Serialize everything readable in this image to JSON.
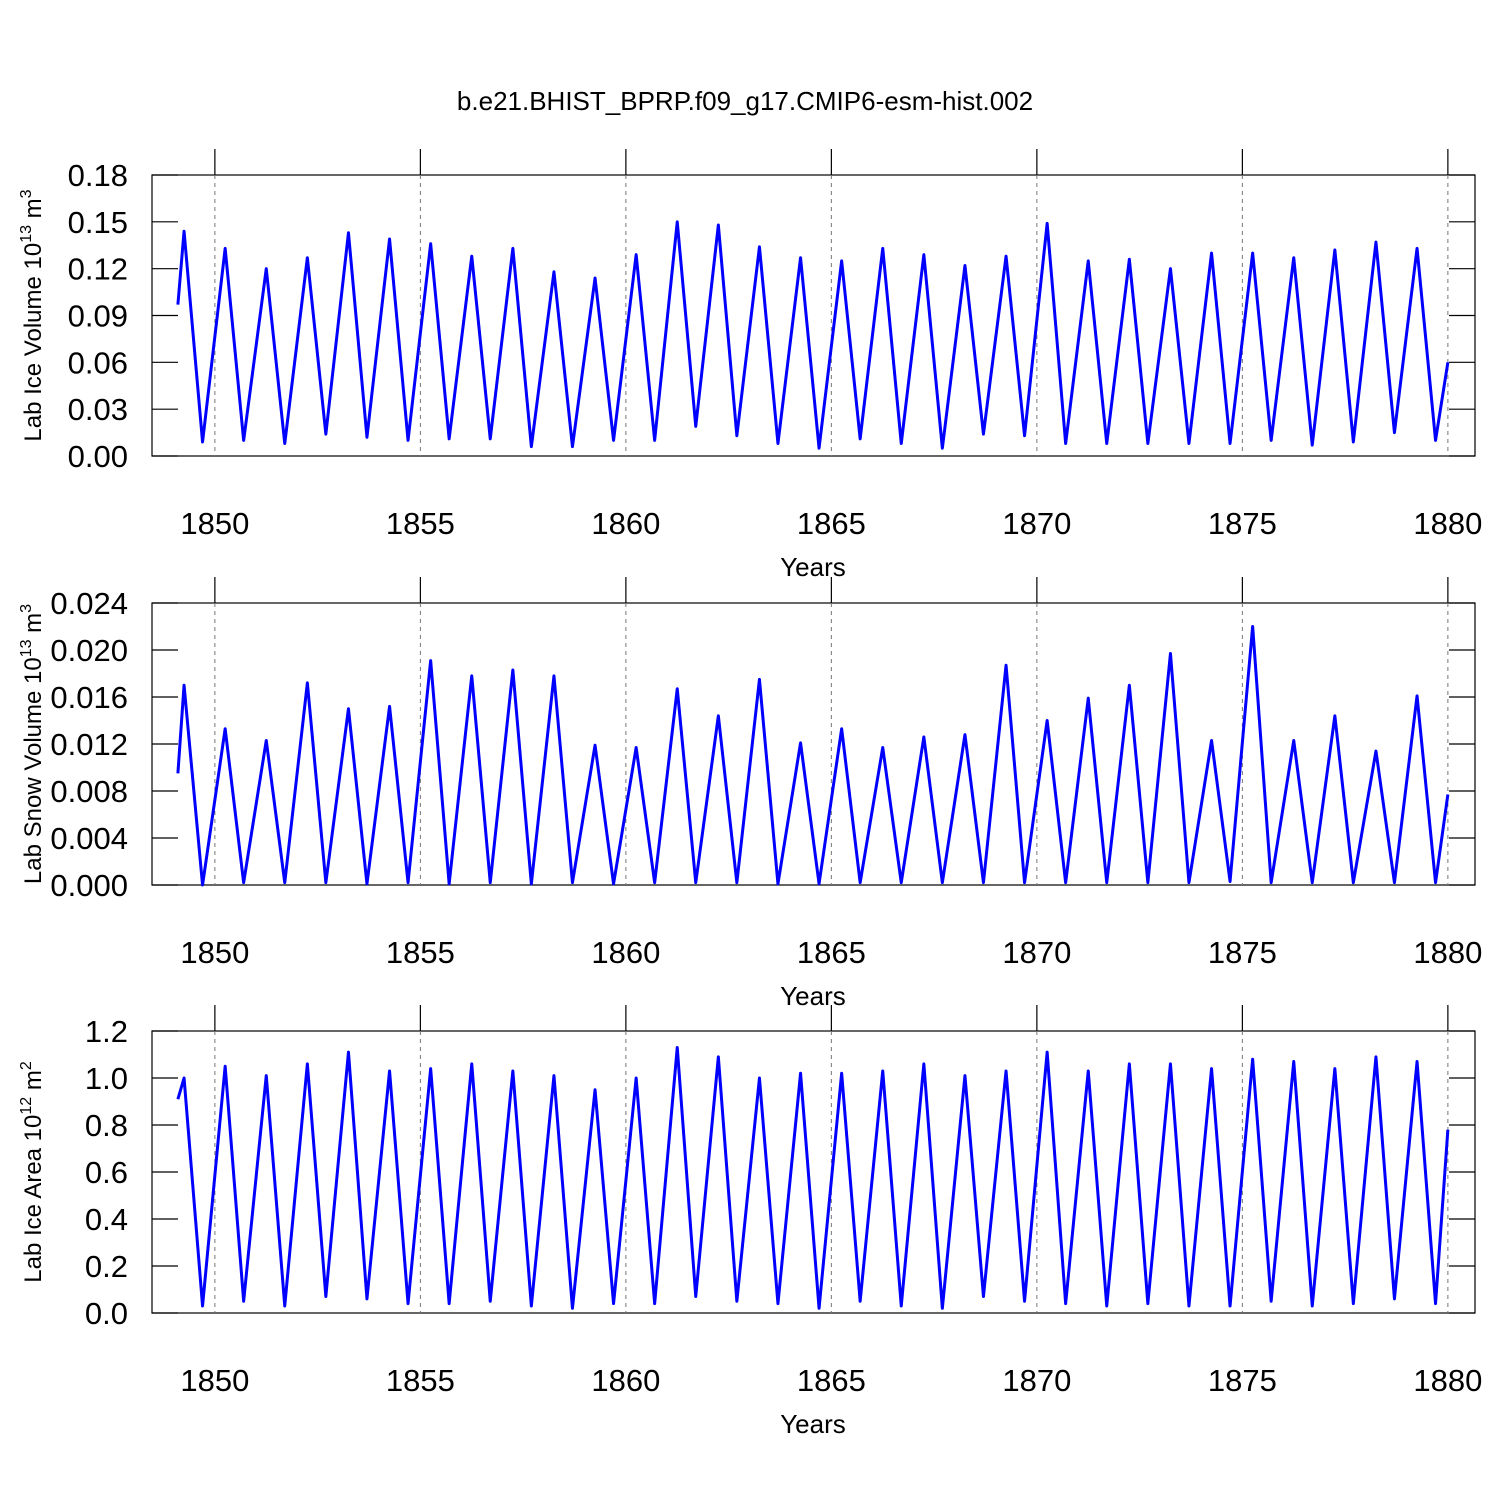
{
  "chart_data": [
    {
      "type": "line",
      "title": "b.e21.BHIST_BPRP.f09_g17.CMIP6-esm-hist.002",
      "xlabel": "Years",
      "ylabel": {
        "text": "Lab Ice Volume 10",
        "exp": "13",
        "unit": " m",
        "unit_exp": "3"
      },
      "xlim": [
        1848.47,
        1880.66
      ],
      "xticks": [
        1850,
        1855,
        1860,
        1865,
        1870,
        1875,
        1880
      ],
      "grid": true,
      "ylim": [
        0,
        0.18
      ],
      "yticks": [
        {
          "value": 0,
          "label": "0.00"
        },
        0.03,
        0.06,
        0.09,
        0.12,
        0.15,
        0.18
      ],
      "color": "#0000ff",
      "x": [
        1849.1,
        1849.25,
        1849.7,
        1850.25,
        1850.7,
        1851.25,
        1851.7,
        1852.25,
        1852.7,
        1853.25,
        1853.7,
        1854.25,
        1854.7,
        1855.25,
        1855.7,
        1856.25,
        1856.7,
        1857.25,
        1857.7,
        1858.25,
        1858.7,
        1859.25,
        1859.7,
        1860.25,
        1860.7,
        1861.25,
        1861.7,
        1862.25,
        1862.7,
        1863.25,
        1863.7,
        1864.25,
        1864.7,
        1865.25,
        1865.7,
        1866.25,
        1866.7,
        1867.25,
        1867.7,
        1868.25,
        1868.7,
        1869.25,
        1869.7,
        1870.25,
        1870.7,
        1871.25,
        1871.7,
        1872.25,
        1872.7,
        1873.25,
        1873.7,
        1874.25,
        1874.7,
        1875.25,
        1875.7,
        1876.25,
        1876.7,
        1877.25,
        1877.7,
        1878.25,
        1878.7,
        1879.25,
        1879.7,
        1880.0
      ],
      "values": [
        0.097,
        0.144,
        0.009,
        0.133,
        0.01,
        0.12,
        0.008,
        0.127,
        0.014,
        0.143,
        0.012,
        0.139,
        0.01,
        0.136,
        0.011,
        0.128,
        0.011,
        0.133,
        0.006,
        0.118,
        0.006,
        0.114,
        0.01,
        0.129,
        0.01,
        0.15,
        0.019,
        0.148,
        0.013,
        0.134,
        0.008,
        0.127,
        0.005,
        0.125,
        0.011,
        0.133,
        0.008,
        0.129,
        0.005,
        0.122,
        0.014,
        0.128,
        0.013,
        0.149,
        0.008,
        0.125,
        0.008,
        0.126,
        0.008,
        0.12,
        0.008,
        0.13,
        0.008,
        0.13,
        0.01,
        0.127,
        0.007,
        0.132,
        0.009,
        0.137,
        0.015,
        0.133,
        0.01,
        0.06
      ]
    },
    {
      "type": "line",
      "xlabel": "Years",
      "ylabel": {
        "text": "Lab Snow Volume 10",
        "exp": "13",
        "unit": " m",
        "unit_exp": "3"
      },
      "xlim": [
        1848.47,
        1880.66
      ],
      "xticks": [
        1850,
        1855,
        1860,
        1865,
        1870,
        1875,
        1880
      ],
      "grid": true,
      "ylim": [
        0,
        0.024
      ],
      "yticks": [
        {
          "value": 0,
          "label": "0.000"
        },
        0.004,
        0.008,
        0.012,
        0.016,
        {
          "value": 0.02,
          "label": "0.020"
        },
        0.024
      ],
      "color": "#0000ff",
      "x": [
        1849.1,
        1849.25,
        1849.7,
        1850.25,
        1850.7,
        1851.25,
        1851.7,
        1852.25,
        1852.7,
        1853.25,
        1853.7,
        1854.25,
        1854.7,
        1855.25,
        1855.7,
        1856.25,
        1856.7,
        1857.25,
        1857.7,
        1858.25,
        1858.7,
        1859.25,
        1859.7,
        1860.25,
        1860.7,
        1861.25,
        1861.7,
        1862.25,
        1862.7,
        1863.25,
        1863.7,
        1864.25,
        1864.7,
        1865.25,
        1865.7,
        1866.25,
        1866.7,
        1867.25,
        1867.7,
        1868.25,
        1868.7,
        1869.25,
        1869.7,
        1870.25,
        1870.7,
        1871.25,
        1871.7,
        1872.25,
        1872.7,
        1873.25,
        1873.7,
        1874.25,
        1874.7,
        1875.25,
        1875.7,
        1876.25,
        1876.7,
        1877.25,
        1877.7,
        1878.25,
        1878.7,
        1879.25,
        1879.7,
        1880.0
      ],
      "values": [
        0.0095,
        0.017,
        0.0,
        0.0133,
        0.0002,
        0.0123,
        0.0002,
        0.0172,
        0.0002,
        0.015,
        0.0001,
        0.0152,
        0.0002,
        0.0191,
        0.0001,
        0.0178,
        0.0002,
        0.0183,
        0.0001,
        0.0178,
        0.0002,
        0.0119,
        0.0001,
        0.0117,
        0.0002,
        0.0167,
        0.0002,
        0.0144,
        0.0002,
        0.0175,
        0.0001,
        0.0121,
        0.0001,
        0.0133,
        0.0002,
        0.0117,
        0.0002,
        0.0126,
        0.0002,
        0.0128,
        0.0002,
        0.0187,
        0.0002,
        0.014,
        0.0002,
        0.0159,
        0.0002,
        0.017,
        0.0002,
        0.0197,
        0.0002,
        0.0123,
        0.0003,
        0.022,
        0.0002,
        0.0123,
        0.0002,
        0.0144,
        0.0002,
        0.0114,
        0.0002,
        0.0161,
        0.0002,
        0.0077
      ]
    },
    {
      "type": "line",
      "xlabel": "Years",
      "ylabel": {
        "text": "Lab Ice Area 10",
        "exp": "12",
        "unit": " m",
        "unit_exp": "2"
      },
      "xlim": [
        1848.47,
        1880.66
      ],
      "xticks": [
        1850,
        1855,
        1860,
        1865,
        1870,
        1875,
        1880
      ],
      "grid": true,
      "ylim": [
        0,
        1.2
      ],
      "yticks": [
        {
          "value": 0,
          "label": "0.0"
        },
        0.2,
        0.4,
        0.6,
        0.8,
        {
          "value": 1,
          "label": "1.0"
        },
        1.2
      ],
      "color": "#0000ff",
      "x": [
        1849.1,
        1849.25,
        1849.7,
        1850.25,
        1850.7,
        1851.25,
        1851.7,
        1852.25,
        1852.7,
        1853.25,
        1853.7,
        1854.25,
        1854.7,
        1855.25,
        1855.7,
        1856.25,
        1856.7,
        1857.25,
        1857.7,
        1858.25,
        1858.7,
        1859.25,
        1859.7,
        1860.25,
        1860.7,
        1861.25,
        1861.7,
        1862.25,
        1862.7,
        1863.25,
        1863.7,
        1864.25,
        1864.7,
        1865.25,
        1865.7,
        1866.25,
        1866.7,
        1867.25,
        1867.7,
        1868.25,
        1868.7,
        1869.25,
        1869.7,
        1870.25,
        1870.7,
        1871.25,
        1871.7,
        1872.25,
        1872.7,
        1873.25,
        1873.7,
        1874.25,
        1874.7,
        1875.25,
        1875.7,
        1876.25,
        1876.7,
        1877.25,
        1877.7,
        1878.25,
        1878.7,
        1879.25,
        1879.7,
        1880.0
      ],
      "values": [
        0.91,
        1.0,
        0.03,
        1.05,
        0.05,
        1.01,
        0.03,
        1.06,
        0.07,
        1.11,
        0.06,
        1.03,
        0.04,
        1.04,
        0.04,
        1.06,
        0.05,
        1.03,
        0.03,
        1.01,
        0.02,
        0.95,
        0.04,
        1.0,
        0.04,
        1.13,
        0.07,
        1.09,
        0.05,
        1.0,
        0.04,
        1.02,
        0.02,
        1.02,
        0.05,
        1.03,
        0.03,
        1.06,
        0.02,
        1.01,
        0.07,
        1.03,
        0.05,
        1.11,
        0.04,
        1.03,
        0.03,
        1.06,
        0.04,
        1.06,
        0.03,
        1.04,
        0.03,
        1.08,
        0.05,
        1.07,
        0.03,
        1.04,
        0.04,
        1.09,
        0.06,
        1.07,
        0.04,
        0.78
      ]
    }
  ]
}
